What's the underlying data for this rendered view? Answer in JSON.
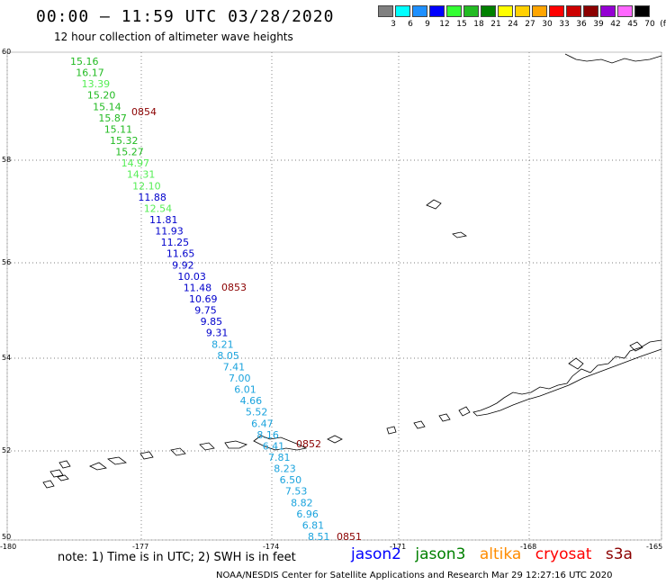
{
  "title": "00:00 – 11:59 UTC 03/28/2020",
  "subtitle": "12 hour collection of altimeter wave heights",
  "scale": {
    "labels": [
      "3",
      "6",
      "9",
      "12",
      "15",
      "18",
      "21",
      "24",
      "27",
      "30",
      "33",
      "36",
      "39",
      "42",
      "45",
      "70"
    ],
    "unit": "(ft)",
    "colors": [
      "#808080",
      "#00ffff",
      "#1e90ff",
      "#0000ff",
      "#33ff33",
      "#22bb22",
      "#008000",
      "#ffff00",
      "#ffd000",
      "#ffa500",
      "#ff0000",
      "#cc0000",
      "#8b0000",
      "#9400d3",
      "#ff66ff",
      "#000000"
    ]
  },
  "axes": {
    "lon_labels": [
      "-180",
      "-177",
      "-174",
      "-171",
      "-168",
      "-165"
    ],
    "lat_labels": [
      "60",
      "58",
      "56",
      "54",
      "52",
      "50"
    ]
  },
  "track": {
    "values": [
      {
        "v": "15.16",
        "c": "#22bb22"
      },
      {
        "v": "16.17",
        "c": "#22bb22"
      },
      {
        "v": "13.39",
        "c": "#55ee55"
      },
      {
        "v": "15.20",
        "c": "#22bb22"
      },
      {
        "v": "15.14",
        "c": "#22bb22"
      },
      {
        "v": "15.87",
        "c": "#22bb22"
      },
      {
        "v": "15.11",
        "c": "#22bb22"
      },
      {
        "v": "15.32",
        "c": "#22bb22"
      },
      {
        "v": "15.27",
        "c": "#22bb22"
      },
      {
        "v": "14.97",
        "c": "#55ee55"
      },
      {
        "v": "14.31",
        "c": "#55ee55"
      },
      {
        "v": "12.10",
        "c": "#55ee55"
      },
      {
        "v": "11.88",
        "c": "#0000cc"
      },
      {
        "v": "12.54",
        "c": "#55ee55"
      },
      {
        "v": "11.81",
        "c": "#0000cc"
      },
      {
        "v": "11.93",
        "c": "#0000cc"
      },
      {
        "v": "11.25",
        "c": "#0000cc"
      },
      {
        "v": "11.65",
        "c": "#0000cc"
      },
      {
        "v": "9.92",
        "c": "#0000cc"
      },
      {
        "v": "10.03",
        "c": "#0000cc"
      },
      {
        "v": "11.48",
        "c": "#0000cc"
      },
      {
        "v": "10.69",
        "c": "#0000cc"
      },
      {
        "v": "9.75",
        "c": "#0000cc"
      },
      {
        "v": "9.85",
        "c": "#0000cc"
      },
      {
        "v": "9.31",
        "c": "#0000cc"
      },
      {
        "v": "8.21",
        "c": "#1aa3dd"
      },
      {
        "v": "8.05",
        "c": "#1aa3dd"
      },
      {
        "v": "7.41",
        "c": "#1aa3dd"
      },
      {
        "v": "7.00",
        "c": "#1aa3dd"
      },
      {
        "v": "6.01",
        "c": "#1aa3dd"
      },
      {
        "v": "4.66",
        "c": "#1aa3dd"
      },
      {
        "v": "5.52",
        "c": "#1aa3dd"
      },
      {
        "v": "6.47",
        "c": "#1aa3dd"
      },
      {
        "v": "8.16",
        "c": "#1aa3dd"
      },
      {
        "v": "6.41",
        "c": "#1aa3dd"
      },
      {
        "v": "7.81",
        "c": "#1aa3dd"
      },
      {
        "v": "8.23",
        "c": "#1aa3dd"
      },
      {
        "v": "6.50",
        "c": "#1aa3dd"
      },
      {
        "v": "7.53",
        "c": "#1aa3dd"
      },
      {
        "v": "8.82",
        "c": "#1aa3dd"
      },
      {
        "v": "6.96",
        "c": "#1aa3dd"
      },
      {
        "v": "6.81",
        "c": "#1aa3dd"
      },
      {
        "v": "8.51",
        "c": "#1aa3dd"
      }
    ],
    "time_labels": [
      "0854",
      "0853",
      "0852",
      "0851"
    ],
    "time_color": "#8b0000"
  },
  "note": "note: 1) Time is in UTC; 2) SWH is in feet",
  "legend": [
    {
      "label": "jason2",
      "color": "#0000ff"
    },
    {
      "label": "jason3",
      "color": "#008000"
    },
    {
      "label": "altika",
      "color": "#ff8c00"
    },
    {
      "label": "cryosat",
      "color": "#ff0000"
    },
    {
      "label": "s3a",
      "color": "#8b0000"
    }
  ],
  "credit": "NOAA/NESDIS Center for Satellite Applications and Research   Mar 29 12:27:16 UTC 2020"
}
